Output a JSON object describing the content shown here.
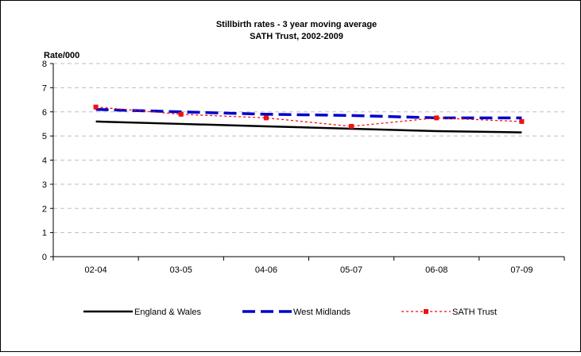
{
  "chart_data": {
    "type": "line",
    "title": "Stillbirth rates - 3 year moving average",
    "subtitle": "SATH Trust, 2002-2009",
    "xlabel": "",
    "ylabel": "Rate/000",
    "ylim": [
      0,
      8
    ],
    "y_ticks": [
      "0",
      "1",
      "2",
      "3",
      "4",
      "5",
      "6",
      "7",
      "8"
    ],
    "grid": true,
    "legend_position": "bottom",
    "categories": [
      "02-04",
      "03-05",
      "04-06",
      "05-07",
      "06-08",
      "07-09"
    ],
    "series": [
      {
        "name": "England & Wales",
        "values": [
          5.6,
          5.5,
          5.4,
          5.3,
          5.2,
          5.15
        ],
        "color": "#000000",
        "style": "solid"
      },
      {
        "name": "West Midlands",
        "values": [
          6.1,
          6.0,
          5.9,
          5.85,
          5.75,
          5.75
        ],
        "color": "#0000cc",
        "style": "dashed"
      },
      {
        "name": "SATH Trust",
        "values": [
          6.2,
          5.9,
          5.75,
          5.4,
          5.75,
          5.6
        ],
        "color": "#ee1111",
        "style": "dotted-markers"
      }
    ]
  }
}
